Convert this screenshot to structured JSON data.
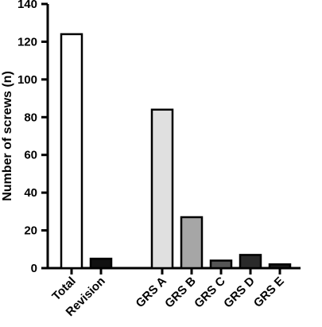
{
  "chart_data": {
    "type": "bar",
    "title": "",
    "xlabel": "",
    "ylabel": "Number of screws (n)",
    "ylim": [
      0,
      140
    ],
    "yticks": [
      0,
      20,
      40,
      60,
      80,
      100,
      120,
      140
    ],
    "grid": false,
    "legend": "none",
    "categories": [
      "Total",
      "Revision",
      "GRS A",
      "GRS B",
      "GRS C",
      "GRS D",
      "GRS E"
    ],
    "values": [
      124,
      5,
      84,
      27,
      4,
      7,
      2
    ],
    "colors": [
      "#ffffff",
      "#111111",
      "#e0e0e0",
      "#a6a6a6",
      "#555555",
      "#2a2a2a",
      "#1a1a1a"
    ],
    "category_gap_after_index": 1
  }
}
